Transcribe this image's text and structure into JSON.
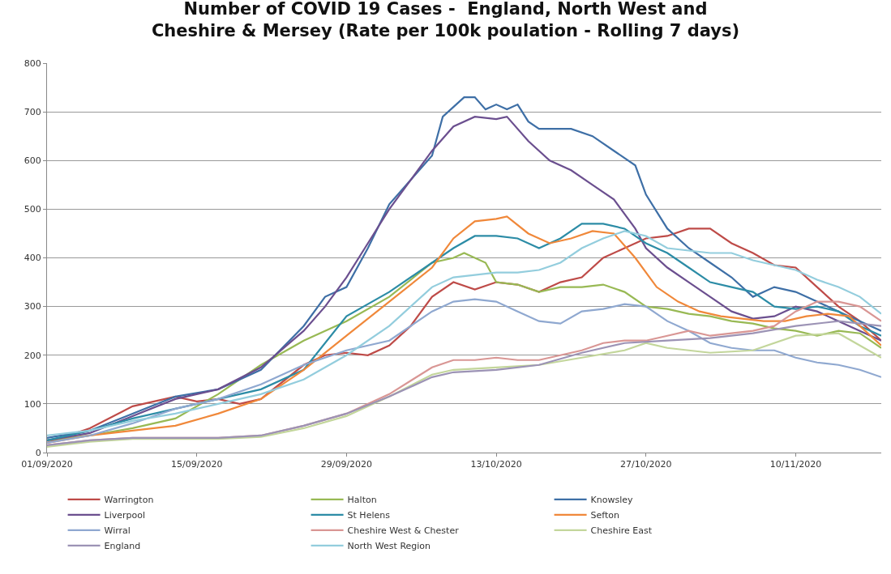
{
  "chart_data": {
    "type": "line",
    "title": "Number of COVID 19 Cases -  England, North West and\nCheshire & Mersey (Rate per 100k poulation - Rolling 7 days)",
    "xlim": [
      "2020-09-01",
      "2020-11-18"
    ],
    "xticks": [
      {
        "value": "2020-09-01",
        "label": "01/09/2020"
      },
      {
        "value": "2020-09-15",
        "label": "15/09/2020"
      },
      {
        "value": "2020-09-29",
        "label": "29/09/2020"
      },
      {
        "value": "2020-10-13",
        "label": "13/10/2020"
      },
      {
        "value": "2020-10-27",
        "label": "27/10/2020"
      },
      {
        "value": "2020-11-10",
        "label": "10/11/2020"
      }
    ],
    "ylim": [
      0,
      800
    ],
    "yticks": [
      0,
      100,
      200,
      300,
      400,
      500,
      600,
      700,
      800
    ],
    "grid": "y",
    "legend": "bottom",
    "line_style": "solid",
    "marker": "none",
    "series": [
      {
        "name": "Warrington",
        "color": "#be4b48",
        "x": [
          "2020-09-01",
          "2020-09-05",
          "2020-09-09",
          "2020-09-13",
          "2020-09-15",
          "2020-09-17",
          "2020-09-19",
          "2020-09-21",
          "2020-09-25",
          "2020-09-27",
          "2020-09-29",
          "2020-10-01",
          "2020-10-03",
          "2020-10-05",
          "2020-10-07",
          "2020-10-09",
          "2020-10-11",
          "2020-10-13",
          "2020-10-15",
          "2020-10-17",
          "2020-10-19",
          "2020-10-21",
          "2020-10-23",
          "2020-10-25",
          "2020-10-27",
          "2020-10-29",
          "2020-10-31",
          "2020-11-02",
          "2020-11-04",
          "2020-11-06",
          "2020-11-08",
          "2020-11-10",
          "2020-11-12",
          "2020-11-14",
          "2020-11-16",
          "2020-11-18"
        ],
        "values": [
          20,
          50,
          95,
          115,
          105,
          110,
          100,
          110,
          180,
          200,
          205,
          200,
          220,
          260,
          320,
          350,
          335,
          350,
          345,
          330,
          350,
          360,
          400,
          420,
          440,
          445,
          460,
          460,
          430,
          410,
          385,
          380,
          340,
          300,
          270,
          230
        ]
      },
      {
        "name": "Halton",
        "color": "#98b954",
        "x": [
          "2020-09-01",
          "2020-09-05",
          "2020-09-09",
          "2020-09-13",
          "2020-09-17",
          "2020-09-21",
          "2020-09-25",
          "2020-09-29",
          "2020-10-03",
          "2020-10-07",
          "2020-10-09",
          "2020-10-10",
          "2020-10-12",
          "2020-10-13",
          "2020-10-15",
          "2020-10-17",
          "2020-10-19",
          "2020-10-21",
          "2020-10-23",
          "2020-10-25",
          "2020-10-27",
          "2020-10-29",
          "2020-10-31",
          "2020-11-02",
          "2020-11-04",
          "2020-11-06",
          "2020-11-08",
          "2020-11-10",
          "2020-11-12",
          "2020-11-14",
          "2020-11-16",
          "2020-11-18"
        ],
        "values": [
          25,
          35,
          50,
          70,
          120,
          180,
          230,
          270,
          320,
          390,
          400,
          410,
          390,
          350,
          345,
          330,
          340,
          340,
          345,
          330,
          300,
          295,
          285,
          280,
          270,
          265,
          255,
          250,
          240,
          250,
          245,
          215
        ]
      },
      {
        "name": "Knowsley",
        "color": "#3e6fa6",
        "x": [
          "2020-09-01",
          "2020-09-05",
          "2020-09-09",
          "2020-09-13",
          "2020-09-17",
          "2020-09-21",
          "2020-09-25",
          "2020-09-27",
          "2020-09-29",
          "2020-10-01",
          "2020-10-03",
          "2020-10-05",
          "2020-10-07",
          "2020-10-08",
          "2020-10-09",
          "2020-10-10",
          "2020-10-11",
          "2020-10-12",
          "2020-10-13",
          "2020-10-14",
          "2020-10-15",
          "2020-10-16",
          "2020-10-17",
          "2020-10-20",
          "2020-10-22",
          "2020-10-24",
          "2020-10-26",
          "2020-10-27",
          "2020-10-29",
          "2020-10-31",
          "2020-11-02",
          "2020-11-04",
          "2020-11-06",
          "2020-11-08",
          "2020-11-10",
          "2020-11-12",
          "2020-11-14",
          "2020-11-16",
          "2020-11-18"
        ],
        "values": [
          30,
          45,
          80,
          115,
          130,
          170,
          260,
          320,
          340,
          420,
          510,
          560,
          610,
          690,
          710,
          730,
          730,
          705,
          715,
          705,
          715,
          680,
          665,
          665,
          650,
          620,
          590,
          530,
          460,
          420,
          390,
          360,
          320,
          340,
          330,
          310,
          290,
          270,
          250
        ]
      },
      {
        "name": "Liverpool",
        "color": "#6b4f8f",
        "x": [
          "2020-09-01",
          "2020-09-05",
          "2020-09-09",
          "2020-09-13",
          "2020-09-17",
          "2020-09-21",
          "2020-09-25",
          "2020-09-27",
          "2020-09-29",
          "2020-10-01",
          "2020-10-03",
          "2020-10-05",
          "2020-10-07",
          "2020-10-09",
          "2020-10-11",
          "2020-10-13",
          "2020-10-14",
          "2020-10-16",
          "2020-10-18",
          "2020-10-20",
          "2020-10-22",
          "2020-10-24",
          "2020-10-26",
          "2020-10-27",
          "2020-10-29",
          "2020-10-31",
          "2020-11-02",
          "2020-11-04",
          "2020-11-06",
          "2020-11-08",
          "2020-11-10",
          "2020-11-12",
          "2020-11-14",
          "2020-11-16",
          "2020-11-18"
        ],
        "values": [
          25,
          40,
          75,
          110,
          130,
          175,
          250,
          300,
          360,
          430,
          500,
          560,
          620,
          670,
          690,
          685,
          690,
          640,
          600,
          580,
          550,
          520,
          460,
          420,
          380,
          350,
          320,
          290,
          275,
          280,
          300,
          290,
          270,
          250,
          230
        ]
      },
      {
        "name": "St Helens",
        "color": "#2c8ca6",
        "x": [
          "2020-09-01",
          "2020-09-05",
          "2020-09-09",
          "2020-09-13",
          "2020-09-17",
          "2020-09-21",
          "2020-09-25",
          "2020-09-29",
          "2020-10-03",
          "2020-10-07",
          "2020-10-09",
          "2020-10-11",
          "2020-10-13",
          "2020-10-15",
          "2020-10-17",
          "2020-10-19",
          "2020-10-21",
          "2020-10-23",
          "2020-10-25",
          "2020-10-27",
          "2020-10-29",
          "2020-10-31",
          "2020-11-02",
          "2020-11-04",
          "2020-11-06",
          "2020-11-08",
          "2020-11-10",
          "2020-11-12",
          "2020-11-14",
          "2020-11-16",
          "2020-11-18"
        ],
        "values": [
          25,
          45,
          70,
          90,
          110,
          130,
          170,
          280,
          330,
          390,
          420,
          445,
          445,
          440,
          420,
          440,
          470,
          470,
          460,
          430,
          410,
          380,
          350,
          340,
          330,
          300,
          295,
          300,
          290,
          260,
          240
        ]
      },
      {
        "name": "Sefton",
        "color": "#f0883a",
        "x": [
          "2020-09-01",
          "2020-09-05",
          "2020-09-09",
          "2020-09-13",
          "2020-09-17",
          "2020-09-21",
          "2020-09-25",
          "2020-09-29",
          "2020-10-03",
          "2020-10-07",
          "2020-10-09",
          "2020-10-11",
          "2020-10-13",
          "2020-10-14",
          "2020-10-16",
          "2020-10-18",
          "2020-10-20",
          "2020-10-22",
          "2020-10-24",
          "2020-10-26",
          "2020-10-28",
          "2020-10-30",
          "2020-11-01",
          "2020-11-03",
          "2020-11-05",
          "2020-11-07",
          "2020-11-09",
          "2020-11-11",
          "2020-11-13",
          "2020-11-15",
          "2020-11-18"
        ],
        "values": [
          20,
          35,
          45,
          55,
          80,
          110,
          170,
          240,
          310,
          380,
          440,
          475,
          480,
          485,
          450,
          430,
          440,
          455,
          450,
          400,
          340,
          310,
          290,
          280,
          275,
          270,
          270,
          280,
          285,
          280,
          220
        ]
      },
      {
        "name": "Wirral",
        "color": "#8fa8d0",
        "x": [
          "2020-09-01",
          "2020-09-05",
          "2020-09-09",
          "2020-09-13",
          "2020-09-17",
          "2020-09-21",
          "2020-09-25",
          "2020-09-29",
          "2020-10-03",
          "2020-10-07",
          "2020-10-09",
          "2020-10-11",
          "2020-10-13",
          "2020-10-15",
          "2020-10-17",
          "2020-10-19",
          "2020-10-21",
          "2020-10-23",
          "2020-10-25",
          "2020-10-27",
          "2020-10-29",
          "2020-10-31",
          "2020-11-02",
          "2020-11-04",
          "2020-11-06",
          "2020-11-08",
          "2020-11-10",
          "2020-11-12",
          "2020-11-14",
          "2020-11-16",
          "2020-11-18"
        ],
        "values": [
          20,
          35,
          60,
          90,
          110,
          140,
          180,
          210,
          230,
          290,
          310,
          315,
          310,
          290,
          270,
          265,
          290,
          295,
          305,
          300,
          270,
          250,
          225,
          215,
          210,
          210,
          195,
          185,
          180,
          170,
          155
        ]
      },
      {
        "name": "Cheshire West & Chester",
        "color": "#d99694",
        "x": [
          "2020-09-01",
          "2020-09-05",
          "2020-09-09",
          "2020-09-13",
          "2020-09-17",
          "2020-09-21",
          "2020-09-25",
          "2020-09-29",
          "2020-10-03",
          "2020-10-07",
          "2020-10-09",
          "2020-10-11",
          "2020-10-13",
          "2020-10-15",
          "2020-10-17",
          "2020-10-19",
          "2020-10-21",
          "2020-10-23",
          "2020-10-25",
          "2020-10-27",
          "2020-10-29",
          "2020-10-31",
          "2020-11-02",
          "2020-11-04",
          "2020-11-06",
          "2020-11-08",
          "2020-11-10",
          "2020-11-12",
          "2020-11-14",
          "2020-11-16",
          "2020-11-18"
        ],
        "values": [
          15,
          25,
          30,
          30,
          30,
          35,
          55,
          80,
          120,
          175,
          190,
          190,
          195,
          190,
          190,
          200,
          210,
          225,
          230,
          230,
          240,
          250,
          240,
          245,
          250,
          260,
          290,
          310,
          310,
          300,
          270
        ]
      },
      {
        "name": "Cheshire East",
        "color": "#c3d69b",
        "x": [
          "2020-09-01",
          "2020-09-05",
          "2020-09-09",
          "2020-09-13",
          "2020-09-17",
          "2020-09-21",
          "2020-09-25",
          "2020-09-29",
          "2020-10-03",
          "2020-10-07",
          "2020-10-09",
          "2020-10-13",
          "2020-10-17",
          "2020-10-21",
          "2020-10-25",
          "2020-10-27",
          "2020-10-29",
          "2020-11-02",
          "2020-11-06",
          "2020-11-10",
          "2020-11-14",
          "2020-11-16",
          "2020-11-18"
        ],
        "values": [
          12,
          22,
          28,
          28,
          28,
          32,
          50,
          75,
          115,
          160,
          170,
          175,
          180,
          195,
          210,
          225,
          215,
          205,
          210,
          240,
          245,
          220,
          195
        ]
      },
      {
        "name": "England",
        "color": "#9c93b5",
        "x": [
          "2020-09-01",
          "2020-09-05",
          "2020-09-09",
          "2020-09-13",
          "2020-09-17",
          "2020-09-21",
          "2020-09-25",
          "2020-09-29",
          "2020-10-03",
          "2020-10-07",
          "2020-10-09",
          "2020-10-13",
          "2020-10-17",
          "2020-10-21",
          "2020-10-25",
          "2020-10-29",
          "2020-11-02",
          "2020-11-06",
          "2020-11-10",
          "2020-11-14",
          "2020-11-18"
        ],
        "values": [
          15,
          25,
          30,
          30,
          30,
          35,
          55,
          80,
          115,
          155,
          165,
          170,
          180,
          205,
          225,
          230,
          235,
          245,
          260,
          270,
          260
        ]
      },
      {
        "name": "North West Region",
        "color": "#93cddd",
        "x": [
          "2020-09-01",
          "2020-09-05",
          "2020-09-09",
          "2020-09-13",
          "2020-09-17",
          "2020-09-21",
          "2020-09-25",
          "2020-09-29",
          "2020-10-03",
          "2020-10-07",
          "2020-10-09",
          "2020-10-11",
          "2020-10-13",
          "2020-10-15",
          "2020-10-17",
          "2020-10-19",
          "2020-10-21",
          "2020-10-23",
          "2020-10-25",
          "2020-10-27",
          "2020-10-29",
          "2020-10-31",
          "2020-11-02",
          "2020-11-04",
          "2020-11-06",
          "2020-11-08",
          "2020-11-10",
          "2020-11-12",
          "2020-11-14",
          "2020-11-16",
          "2020-11-18"
        ],
        "values": [
          35,
          45,
          65,
          80,
          100,
          120,
          150,
          200,
          260,
          340,
          360,
          365,
          370,
          370,
          375,
          390,
          420,
          440,
          455,
          445,
          420,
          415,
          410,
          410,
          395,
          385,
          375,
          355,
          340,
          320,
          285
        ]
      }
    ]
  }
}
